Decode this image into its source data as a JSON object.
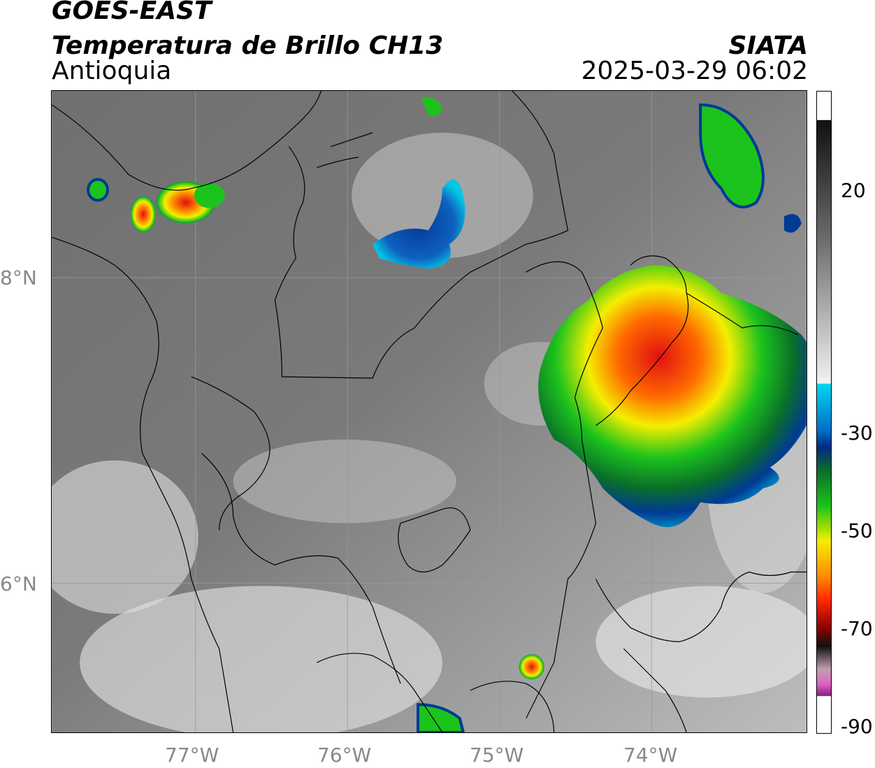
{
  "header": {
    "satellite": "GOES-EAST",
    "product": "Temperatura de Brillo CH13",
    "region": "Antioquia",
    "agency": "SIATA",
    "datetime": "2025-03-29 06:02"
  },
  "axes": {
    "lon_ticks": [
      "77°W",
      "76°W",
      "75°W",
      "74°W"
    ],
    "lat_ticks": [
      "8°N",
      "6°N"
    ]
  },
  "colorbar": {
    "ticks": [
      "20",
      "-30",
      "-50",
      "-70",
      "-90"
    ]
  },
  "colors": {
    "cloud_low": "#5f5f5f",
    "cloud_high": "#e9e9e9",
    "cyan": "#00c8e6",
    "deep_blue": "#003a94",
    "green": "#1cc31c",
    "yellow": "#f4ee00",
    "orange": "#ff8c00",
    "red": "#e01010",
    "magenta": "#d040c0"
  }
}
